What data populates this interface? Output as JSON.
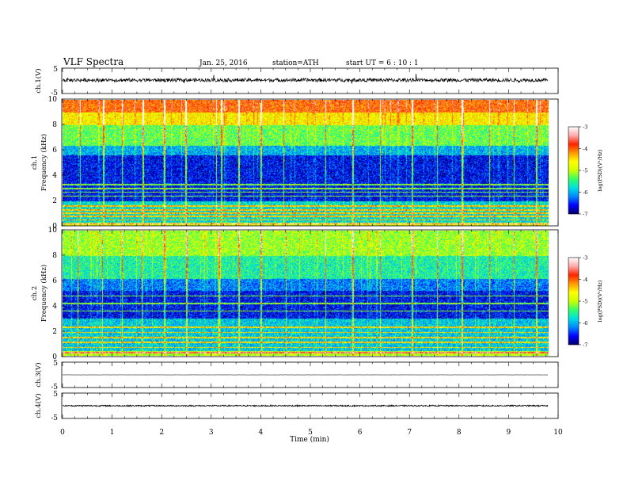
{
  "header": {
    "title": "VLF  Spectra",
    "date": "Jan. 25, 2016",
    "station": "station=ATH",
    "start_ut": "start  UT  =    6  : 10 : 1"
  },
  "chart_data": [
    {
      "type": "line",
      "panel": "ch1-waveform",
      "ylabel": "ch.1(V)",
      "yticks": [
        "5",
        "-5"
      ],
      "ylim": [
        -5,
        5
      ],
      "baseline_v": 0.3,
      "noise_amplitude_v": 0.7,
      "x_unit": "min",
      "xlim": [
        0,
        10
      ],
      "data_end_min": 9.8
    },
    {
      "type": "heatmap",
      "panel": "ch1-spectrogram",
      "ylabel": "ch.1\nFrequency  (kHz)",
      "yticks": [
        "0",
        "2",
        "4",
        "6",
        "8",
        "10"
      ],
      "ylim_khz": [
        0,
        10
      ],
      "xlim_min": [
        0,
        10
      ],
      "data_end_min": 9.8,
      "colorbar": {
        "label": "log(PSD)(V²/Hz)",
        "ticks": [
          "-3",
          "-4",
          "-5",
          "-6",
          "-7"
        ],
        "range": [
          -7,
          -3
        ],
        "colors": [
          "#000066",
          "#0000ff",
          "#0088ff",
          "#00e0e0",
          "#33ff66",
          "#ccff00",
          "#ffff00",
          "#ff9900",
          "#ff2200",
          "#ffaaaa",
          "#ffffff"
        ]
      },
      "band_profile": [
        {
          "freq_khz": [
            0,
            0.3
          ],
          "level": -4.8
        },
        {
          "freq_khz": [
            0.3,
            2.0
          ],
          "level": -5.8
        },
        {
          "freq_khz": [
            2.0,
            5.6
          ],
          "level": -6.6
        },
        {
          "freq_khz": [
            5.6,
            6.4
          ],
          "level": -6.0
        },
        {
          "freq_khz": [
            6.4,
            8.0
          ],
          "level": -5.3
        },
        {
          "freq_khz": [
            8.0,
            9.0
          ],
          "level": -4.6
        },
        {
          "freq_khz": [
            9.0,
            10.0
          ],
          "level": -4.0
        }
      ],
      "tones_khz": [
        0.2,
        0.5,
        0.8,
        1.05,
        1.3,
        1.6,
        2.4,
        2.7,
        3.0,
        3.3
      ],
      "events_min": [
        0.35,
        0.82,
        1.2,
        1.62,
        2.05,
        2.48,
        3.1,
        3.2,
        3.55,
        4.0,
        4.45,
        5.3,
        5.85,
        6.4,
        7.05,
        7.55,
        8.05,
        8.6,
        9.1,
        9.55
      ]
    },
    {
      "type": "heatmap",
      "panel": "ch2-spectrogram",
      "ylabel": "ch.2\nFrequency  (kHz)",
      "yticks": [
        "0",
        "2",
        "4",
        "6",
        "8",
        "10"
      ],
      "ylim_khz": [
        0,
        10
      ],
      "xlim_min": [
        0,
        10
      ],
      "data_end_min": 9.8,
      "colorbar": {
        "label": "log(PSD)(V²/Hz)",
        "ticks": [
          "-3",
          "-4",
          "-5",
          "-6",
          "-7"
        ],
        "range": [
          -7,
          -3
        ],
        "colors": [
          "#000066",
          "#0000ff",
          "#0088ff",
          "#00e0e0",
          "#33ff66",
          "#ccff00",
          "#ffff00",
          "#ff9900",
          "#ff2200",
          "#ffaaaa",
          "#ffffff"
        ]
      },
      "band_profile": [
        {
          "freq_khz": [
            0,
            0.4
          ],
          "level": -5.0
        },
        {
          "freq_khz": [
            0.4,
            3.0
          ],
          "level": -5.9
        },
        {
          "freq_khz": [
            3.0,
            5.2
          ],
          "level": -6.6
        },
        {
          "freq_khz": [
            5.2,
            6.2
          ],
          "level": -6.2
        },
        {
          "freq_khz": [
            6.2,
            8.0
          ],
          "level": -5.6
        },
        {
          "freq_khz": [
            8.0,
            10.0
          ],
          "level": -5.1
        }
      ],
      "tones_khz": [
        0.3,
        0.7,
        1.1,
        1.5,
        1.9,
        2.3,
        3.6,
        4.2,
        4.8
      ],
      "events_min": [
        0.3,
        0.8,
        1.2,
        1.6,
        2.05,
        2.5,
        3.15,
        3.55,
        4.0,
        4.5,
        5.3,
        5.85,
        6.4,
        7.05,
        7.55,
        8.05,
        8.6,
        9.1,
        9.55
      ]
    },
    {
      "type": "line",
      "panel": "ch3-waveform",
      "ylabel": "ch.3(V)",
      "yticks": [
        "5",
        "-5"
      ],
      "ylim": [
        -5,
        5
      ],
      "baseline_v": 0.0,
      "noise_amplitude_v": 0.05,
      "data_end_min": 9.8
    },
    {
      "type": "line",
      "panel": "ch4-waveform",
      "ylabel": "ch.4(V)",
      "yticks": [
        "5",
        "-5"
      ],
      "ylim": [
        -5,
        5
      ],
      "baseline_v": 0.0,
      "noise_amplitude_v": 0.25,
      "data_end_min": 9.8
    }
  ],
  "xaxis": {
    "label": "Time  (min)",
    "ticks": [
      "0",
      "1",
      "2",
      "3",
      "4",
      "5",
      "6",
      "7",
      "8",
      "9",
      "10"
    ]
  }
}
